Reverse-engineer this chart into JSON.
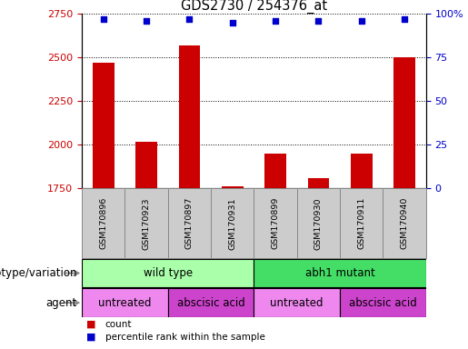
{
  "title": "GDS2730 / 254376_at",
  "samples": [
    "GSM170896",
    "GSM170923",
    "GSM170897",
    "GSM170931",
    "GSM170899",
    "GSM170930",
    "GSM170911",
    "GSM170940"
  ],
  "counts": [
    2470,
    2020,
    2570,
    1760,
    1950,
    1810,
    1950,
    2500
  ],
  "percentile_ranks": [
    97,
    96,
    97,
    95,
    96,
    96,
    96,
    97
  ],
  "bar_color": "#cc0000",
  "dot_color": "#0000cc",
  "ylim_left": [
    1750,
    2750
  ],
  "ylim_right": [
    0,
    100
  ],
  "yticks_left": [
    1750,
    2000,
    2250,
    2500,
    2750
  ],
  "yticks_right": [
    0,
    25,
    50,
    75,
    100
  ],
  "genotype_groups": [
    {
      "label": "wild type",
      "start": 0,
      "end": 4,
      "color": "#aaffaa"
    },
    {
      "label": "abh1 mutant",
      "start": 4,
      "end": 8,
      "color": "#44dd66"
    }
  ],
  "agent_groups": [
    {
      "label": "untreated",
      "start": 0,
      "end": 2,
      "color": "#ee88ee"
    },
    {
      "label": "abscisic acid",
      "start": 2,
      "end": 4,
      "color": "#cc44cc"
    },
    {
      "label": "untreated",
      "start": 4,
      "end": 6,
      "color": "#ee88ee"
    },
    {
      "label": "abscisic acid",
      "start": 6,
      "end": 8,
      "color": "#cc44cc"
    }
  ],
  "legend_count_color": "#cc0000",
  "legend_rank_color": "#0000cc",
  "tick_label_color_left": "#cc0000",
  "tick_label_color_right": "#0000cc",
  "bar_width": 0.5,
  "label_row1": "genotype/variation",
  "label_row2": "agent",
  "sample_box_color": "#cccccc",
  "sample_box_edge": "#888888"
}
